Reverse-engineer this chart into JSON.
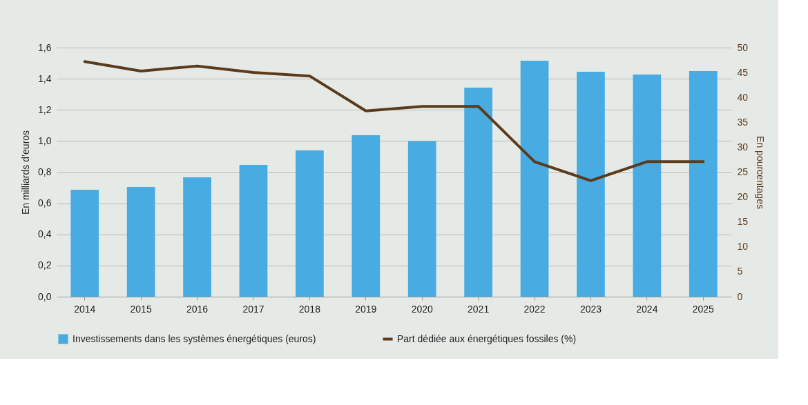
{
  "chart_data": {
    "type": "bar",
    "categories": [
      "2014",
      "2015",
      "2016",
      "2017",
      "2018",
      "2019",
      "2020",
      "2021",
      "2022",
      "2023",
      "2024",
      "2025"
    ],
    "series": [
      {
        "name": "Investissements dans les systèmes énergétiques (euros)",
        "color": "#48abe2",
        "values": [
          0.687,
          0.705,
          0.767,
          0.847,
          0.94,
          1.037,
          1.0,
          1.343,
          1.516,
          1.445,
          1.427,
          1.449
        ]
      },
      {
        "name": "Part dédiée aux énergétiques fossiles (%)",
        "color": "#5c3b1c",
        "type": "line",
        "axis": "y2",
        "values": [
          47.2,
          45.3,
          46.3,
          45.0,
          44.3,
          37.3,
          38.2,
          38.2,
          27.1,
          23.3,
          27.1,
          27.1
        ]
      }
    ],
    "ylabel": "En milliards d’euros",
    "y2label": "En pourcentages",
    "ylim": [
      0,
      1.6
    ],
    "yticks": [
      {
        "value": 0,
        "label": "0,0"
      },
      {
        "value": 0.2,
        "label": "0,2"
      },
      {
        "value": 0.4,
        "label": "0,4"
      },
      {
        "value": 0.6,
        "label": "0,6"
      },
      {
        "value": 0.8,
        "label": "0,8"
      },
      {
        "value": 1.0,
        "label": "1,0"
      },
      {
        "value": 1.2,
        "label": "1,2"
      },
      {
        "value": 1.4,
        "label": "1,4"
      },
      {
        "value": 1.6,
        "label": "1,6"
      }
    ],
    "y2lim": [
      0,
      50
    ],
    "y2ticks": [
      0,
      5,
      10,
      15,
      20,
      25,
      30,
      35,
      40,
      45,
      50
    ],
    "grid": "y",
    "legend": "bottom",
    "marker": "none",
    "line_style": "solid"
  }
}
